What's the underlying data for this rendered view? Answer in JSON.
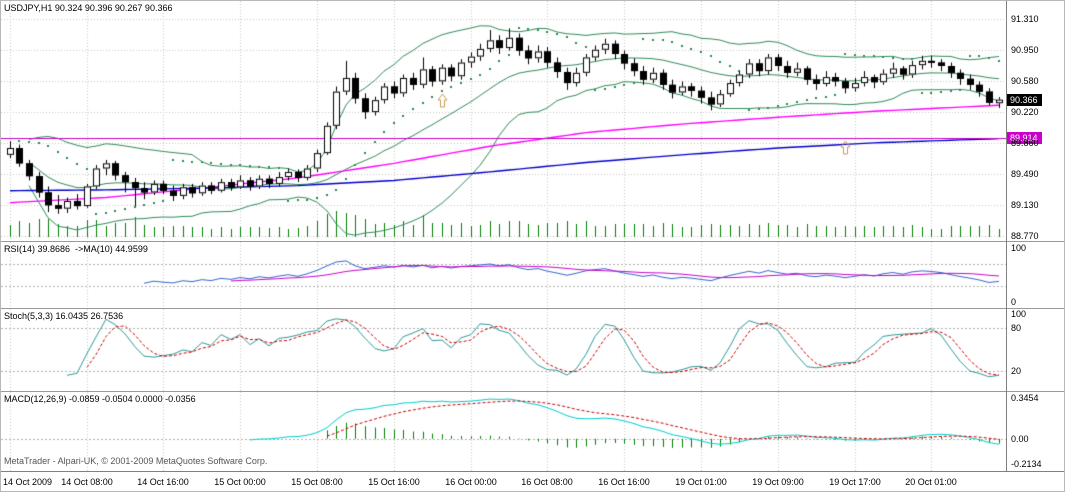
{
  "app": {
    "watermark": "MetaTrader - Alpari-UK, © 2001-2009 MetaQuotes Software Corp."
  },
  "colors": {
    "background": "#FFFFFF",
    "grid": "#C8C8C8",
    "axis_text": "#000000",
    "bull_candle": "#FFFFFF",
    "bear_candle": "#000000",
    "candle_outline": "#000000",
    "bollinger": "#2E8B57",
    "psar": "#2E8B57",
    "volume": "#008000",
    "ma_fast": "#FF00FF",
    "ma_slow": "#0000C8",
    "hline": "#C800C8",
    "current_price_tag_bg": "#000000",
    "rsi_line": "#3366CC",
    "rsi_ma": "#CC00CC",
    "stoch_main": "#2E9999",
    "stoch_signal": "#CC0000",
    "macd_line": "#00CCCC",
    "macd_signal": "#CC0000",
    "macd_hist": "#008000",
    "arrow": "#C89B5A",
    "divider": "#9A9A9A"
  },
  "time_axis": {
    "bars_per_label": 8,
    "labels": [
      "14 Oct 2009",
      "14 Oct 08:00",
      "14 Oct 16:00",
      "15 Oct 00:00",
      "15 Oct 08:00",
      "15 Oct 16:00",
      "16 Oct 00:00",
      "16 Oct 08:00",
      "16 Oct 16:00",
      "19 Oct 01:00",
      "19 Oct 09:00",
      "19 Oct 17:00",
      "20 Oct 01:00"
    ]
  },
  "chart_data": [
    {
      "type": "candlestick",
      "title": "USDJPY,H1 90.324 90.396 90.267 90.366",
      "symbol": "USDJPY",
      "timeframe": "H1",
      "quote": {
        "open": "90.324",
        "high": "90.396",
        "low": "90.267",
        "close": "90.366"
      },
      "y_ticks": [
        "91.310",
        "90.950",
        "90.580",
        "90.220",
        "89.860",
        "89.490",
        "89.130",
        "88.770"
      ],
      "y_min": 88.77,
      "y_max": 91.31,
      "current_price": "90.366",
      "hline": {
        "value": 89.914,
        "label": "89.914"
      },
      "overlays": {
        "bollinger": {
          "period": 20,
          "deviation": 2
        },
        "ma_fast_points": [
          [
            0,
            89.16
          ],
          [
            10,
            89.22
          ],
          [
            20,
            89.33
          ],
          [
            30,
            89.45
          ],
          [
            40,
            89.62
          ],
          [
            50,
            89.82
          ],
          [
            60,
            89.98
          ],
          [
            70,
            90.08
          ],
          [
            80,
            90.16
          ],
          [
            90,
            90.23
          ],
          [
            103,
            90.3
          ]
        ],
        "ma_slow_points": [
          [
            0,
            89.3
          ],
          [
            10,
            89.31
          ],
          [
            20,
            89.33
          ],
          [
            30,
            89.36
          ],
          [
            40,
            89.42
          ],
          [
            50,
            89.52
          ],
          [
            60,
            89.63
          ],
          [
            70,
            89.72
          ],
          [
            80,
            89.8
          ],
          [
            90,
            89.86
          ],
          [
            103,
            89.91
          ]
        ],
        "psar": {
          "step": 0.02,
          "max": 0.2
        },
        "arrows": [
          {
            "bar": 45,
            "price": 90.35
          },
          {
            "bar": 87,
            "price": 89.8
          }
        ]
      },
      "candles": [
        [
          89.72,
          89.88,
          89.68,
          89.8
        ],
        [
          89.8,
          89.84,
          89.58,
          89.62
        ],
        [
          89.62,
          89.66,
          89.42,
          89.47
        ],
        [
          89.47,
          89.52,
          89.22,
          89.28
        ],
        [
          89.28,
          89.35,
          89.05,
          89.13
        ],
        [
          89.13,
          89.25,
          89.03,
          89.09
        ],
        [
          89.09,
          89.22,
          89.04,
          89.18
        ],
        [
          89.18,
          89.26,
          89.08,
          89.12
        ],
        [
          89.12,
          89.38,
          89.1,
          89.35
        ],
        [
          89.35,
          89.6,
          89.32,
          89.56
        ],
        [
          89.56,
          89.66,
          89.48,
          89.62
        ],
        [
          89.62,
          89.65,
          89.42,
          89.48
        ],
        [
          89.48,
          89.52,
          89.28,
          89.4
        ],
        [
          89.4,
          89.45,
          89.12,
          89.33
        ],
        [
          89.33,
          89.4,
          89.2,
          89.28
        ],
        [
          89.28,
          89.42,
          89.25,
          89.38
        ],
        [
          89.38,
          89.42,
          89.26,
          89.3
        ],
        [
          89.3,
          89.36,
          89.18,
          89.24
        ],
        [
          89.24,
          89.38,
          89.2,
          89.34
        ],
        [
          89.34,
          89.38,
          89.22,
          89.27
        ],
        [
          89.27,
          89.4,
          89.24,
          89.36
        ],
        [
          89.36,
          89.4,
          89.26,
          89.3
        ],
        [
          89.3,
          89.44,
          89.28,
          89.4
        ],
        [
          89.4,
          89.44,
          89.3,
          89.34
        ],
        [
          89.34,
          89.48,
          89.32,
          89.42
        ],
        [
          89.42,
          89.46,
          89.3,
          89.35
        ],
        [
          89.35,
          89.48,
          89.32,
          89.44
        ],
        [
          89.44,
          89.48,
          89.33,
          89.38
        ],
        [
          89.38,
          89.52,
          89.35,
          89.46
        ],
        [
          89.46,
          89.56,
          89.42,
          89.52
        ],
        [
          89.52,
          89.55,
          89.4,
          89.45
        ],
        [
          89.45,
          89.6,
          89.42,
          89.56
        ],
        [
          89.56,
          89.78,
          89.52,
          89.74
        ],
        [
          89.74,
          90.1,
          89.72,
          90.06
        ],
        [
          90.06,
          90.52,
          90.02,
          90.46
        ],
        [
          90.46,
          90.82,
          90.42,
          90.62
        ],
        [
          90.62,
          90.68,
          90.32,
          90.38
        ],
        [
          90.38,
          90.44,
          90.14,
          90.22
        ],
        [
          90.22,
          90.4,
          90.18,
          90.36
        ],
        [
          90.36,
          90.56,
          90.32,
          90.52
        ],
        [
          90.52,
          90.58,
          90.38,
          90.44
        ],
        [
          90.44,
          90.66,
          90.4,
          90.62
        ],
        [
          90.62,
          90.68,
          90.48,
          90.54
        ],
        [
          90.54,
          90.86,
          90.5,
          90.72
        ],
        [
          90.72,
          90.76,
          90.52,
          90.58
        ],
        [
          90.58,
          90.78,
          90.54,
          90.74
        ],
        [
          90.74,
          90.78,
          90.58,
          90.64
        ],
        [
          90.64,
          90.84,
          90.6,
          90.8
        ],
        [
          90.8,
          90.92,
          90.74,
          90.87
        ],
        [
          90.87,
          91.02,
          90.82,
          90.96
        ],
        [
          90.96,
          91.18,
          90.92,
          91.06
        ],
        [
          91.06,
          91.12,
          90.9,
          90.97
        ],
        [
          90.97,
          91.2,
          90.94,
          91.09
        ],
        [
          91.09,
          91.14,
          90.88,
          90.94
        ],
        [
          90.94,
          91.0,
          90.78,
          90.85
        ],
        [
          90.85,
          91.0,
          90.8,
          90.93
        ],
        [
          90.93,
          90.98,
          90.74,
          90.8
        ],
        [
          90.8,
          90.86,
          90.62,
          90.69
        ],
        [
          90.69,
          90.74,
          90.48,
          90.56
        ],
        [
          90.56,
          90.74,
          90.52,
          90.68
        ],
        [
          90.68,
          90.9,
          90.64,
          90.86
        ],
        [
          90.86,
          91.0,
          90.82,
          90.95
        ],
        [
          90.95,
          91.08,
          90.9,
          91.02
        ],
        [
          91.02,
          91.06,
          90.84,
          90.9
        ],
        [
          90.9,
          90.94,
          90.72,
          90.79
        ],
        [
          90.79,
          90.85,
          90.64,
          90.7
        ],
        [
          90.7,
          90.76,
          90.54,
          90.6
        ],
        [
          90.6,
          90.74,
          90.56,
          90.68
        ],
        [
          90.68,
          90.72,
          90.48,
          90.54
        ],
        [
          90.54,
          90.6,
          90.38,
          90.45
        ],
        [
          90.45,
          90.58,
          90.42,
          90.52
        ],
        [
          90.52,
          90.56,
          90.4,
          90.47
        ],
        [
          90.47,
          90.52,
          90.32,
          90.39
        ],
        [
          90.39,
          90.46,
          90.24,
          90.31
        ],
        [
          90.31,
          90.48,
          90.28,
          90.43
        ],
        [
          90.43,
          90.6,
          90.4,
          90.56
        ],
        [
          90.56,
          90.7,
          90.52,
          90.66
        ],
        [
          90.66,
          90.84,
          90.62,
          90.79
        ],
        [
          90.79,
          90.84,
          90.64,
          90.7
        ],
        [
          90.7,
          90.9,
          90.66,
          90.86
        ],
        [
          90.86,
          90.9,
          90.7,
          90.76
        ],
        [
          90.76,
          90.82,
          90.62,
          90.68
        ],
        [
          90.68,
          90.8,
          90.64,
          90.73
        ],
        [
          90.73,
          90.76,
          90.54,
          90.6
        ],
        [
          90.6,
          90.66,
          90.48,
          90.55
        ],
        [
          90.55,
          90.7,
          90.52,
          90.63
        ],
        [
          90.63,
          90.68,
          90.52,
          90.58
        ],
        [
          90.58,
          90.62,
          90.44,
          90.5
        ],
        [
          90.5,
          90.62,
          90.46,
          90.56
        ],
        [
          90.56,
          90.7,
          90.52,
          90.63
        ],
        [
          90.63,
          90.66,
          90.5,
          90.57
        ],
        [
          90.57,
          90.72,
          90.54,
          90.67
        ],
        [
          90.67,
          90.8,
          90.62,
          90.73
        ],
        [
          90.73,
          90.76,
          90.6,
          90.66
        ],
        [
          90.66,
          90.82,
          90.62,
          90.77
        ],
        [
          90.77,
          90.88,
          90.72,
          90.82
        ],
        [
          90.82,
          90.88,
          90.74,
          90.8
        ],
        [
          90.8,
          90.84,
          90.7,
          90.76
        ],
        [
          90.76,
          90.8,
          90.62,
          90.68
        ],
        [
          90.68,
          90.72,
          90.54,
          90.61
        ],
        [
          90.61,
          90.66,
          90.48,
          90.54
        ],
        [
          90.54,
          90.58,
          90.4,
          90.46
        ],
        [
          90.46,
          90.5,
          90.3,
          90.33
        ],
        [
          90.324,
          90.396,
          90.267,
          90.366
        ]
      ]
    },
    {
      "type": "line",
      "indicator": "RSI",
      "title": "RSI(14) 39.8686  ->MA(10) 44.9599",
      "params": {
        "period": 14,
        "ma_period": 10
      },
      "current_values": [
        39.8686,
        44.9599
      ],
      "y_ticks": [
        "100",
        "0"
      ],
      "y_min": 0,
      "y_max": 100,
      "levels": [
        30,
        70
      ]
    },
    {
      "type": "line",
      "indicator": "Stochastic",
      "title": "Stoch(5,3,3) 16.0435 26.7536",
      "params": {
        "k": 5,
        "d": 3,
        "slowing": 3
      },
      "current_values": [
        16.0435,
        26.7536
      ],
      "y_ticks": [
        "100",
        "80",
        "20"
      ],
      "y_min": 0,
      "y_max": 100,
      "levels": [
        20,
        80
      ]
    },
    {
      "type": "macd",
      "indicator": "MACD",
      "title": "MACD(12,26,9) -0.0859 -0.0504 0.0000 -0.0356",
      "params": {
        "fast": 12,
        "slow": 26,
        "signal": 9
      },
      "current_values": [
        -0.0859,
        -0.0504,
        0.0,
        -0.0356
      ],
      "y_ticks": [
        "0.3454",
        "0.00",
        "-0.2134"
      ],
      "y_min": -0.2134,
      "y_max": 0.3454,
      "levels": [
        0
      ]
    }
  ]
}
